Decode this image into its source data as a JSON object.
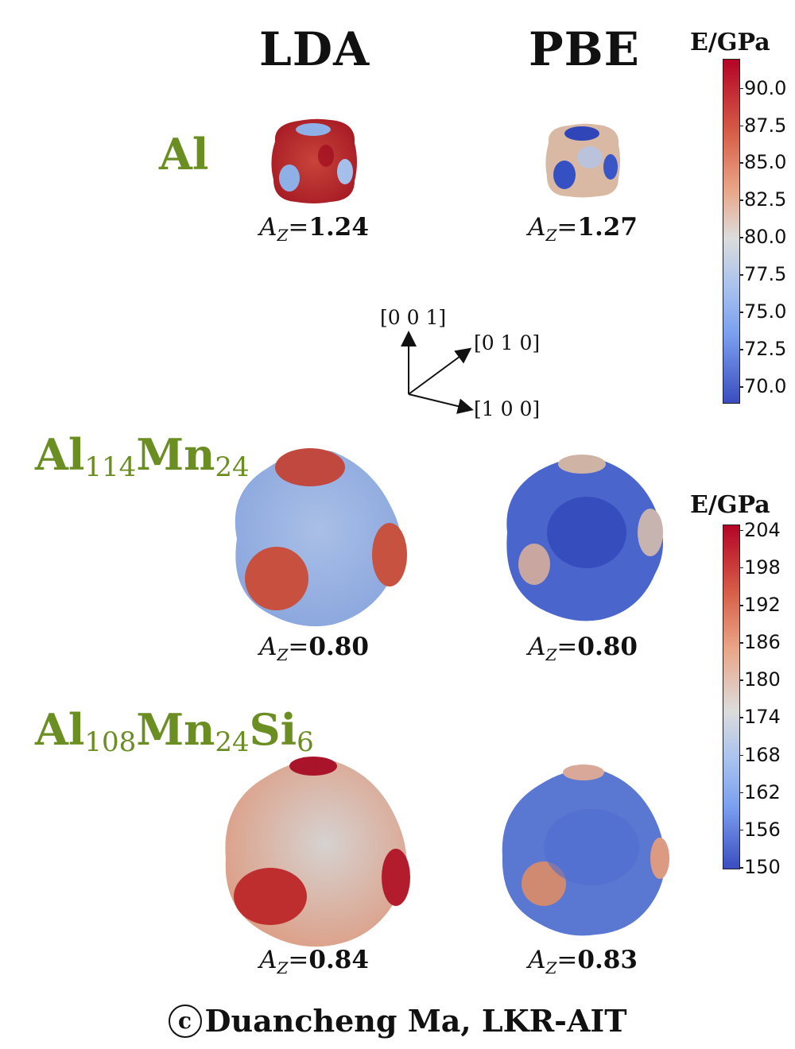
{
  "columns": [
    "LDA",
    "PBE"
  ],
  "materials": [
    {
      "name": "Al",
      "subscripts": [],
      "az": [
        "1.24",
        "1.27"
      ]
    },
    {
      "name": "Al114Mn24",
      "parts": [
        [
          "Al",
          "114"
        ],
        [
          "Mn",
          "24"
        ]
      ],
      "az": [
        "0.80",
        "0.80"
      ]
    },
    {
      "name": "Al108Mn24Si6",
      "parts": [
        [
          "Al",
          "108"
        ],
        [
          "Mn",
          "24"
        ],
        [
          "Si",
          "6"
        ]
      ],
      "az": [
        "0.84",
        "0.83"
      ]
    }
  ],
  "az_symbol": "A",
  "az_subscript": "Z",
  "az_equals": "=",
  "axes": {
    "z": "[0 0 1]",
    "y": "[0 1 0]",
    "x": "[1 0 0]"
  },
  "colorbars": [
    {
      "title": "E/GPa",
      "ticks": [
        "90.0",
        "87.5",
        "85.0",
        "82.5",
        "80.0",
        "77.5",
        "75.0",
        "72.5",
        "70.0"
      ],
      "min": 69,
      "max": 92
    },
    {
      "title": "E/GPa",
      "ticks": [
        "204",
        "198",
        "192",
        "186",
        "180",
        "174",
        "168",
        "162",
        "156",
        "150"
      ],
      "min": 150,
      "max": 205
    }
  ],
  "colors": {
    "material": "#6b8e23",
    "high": "#b40426",
    "mid": "#dddddd",
    "low": "#3b4cc0"
  },
  "copyright": {
    "symbol": "c",
    "text": "Duancheng Ma, LKR-AIT"
  }
}
